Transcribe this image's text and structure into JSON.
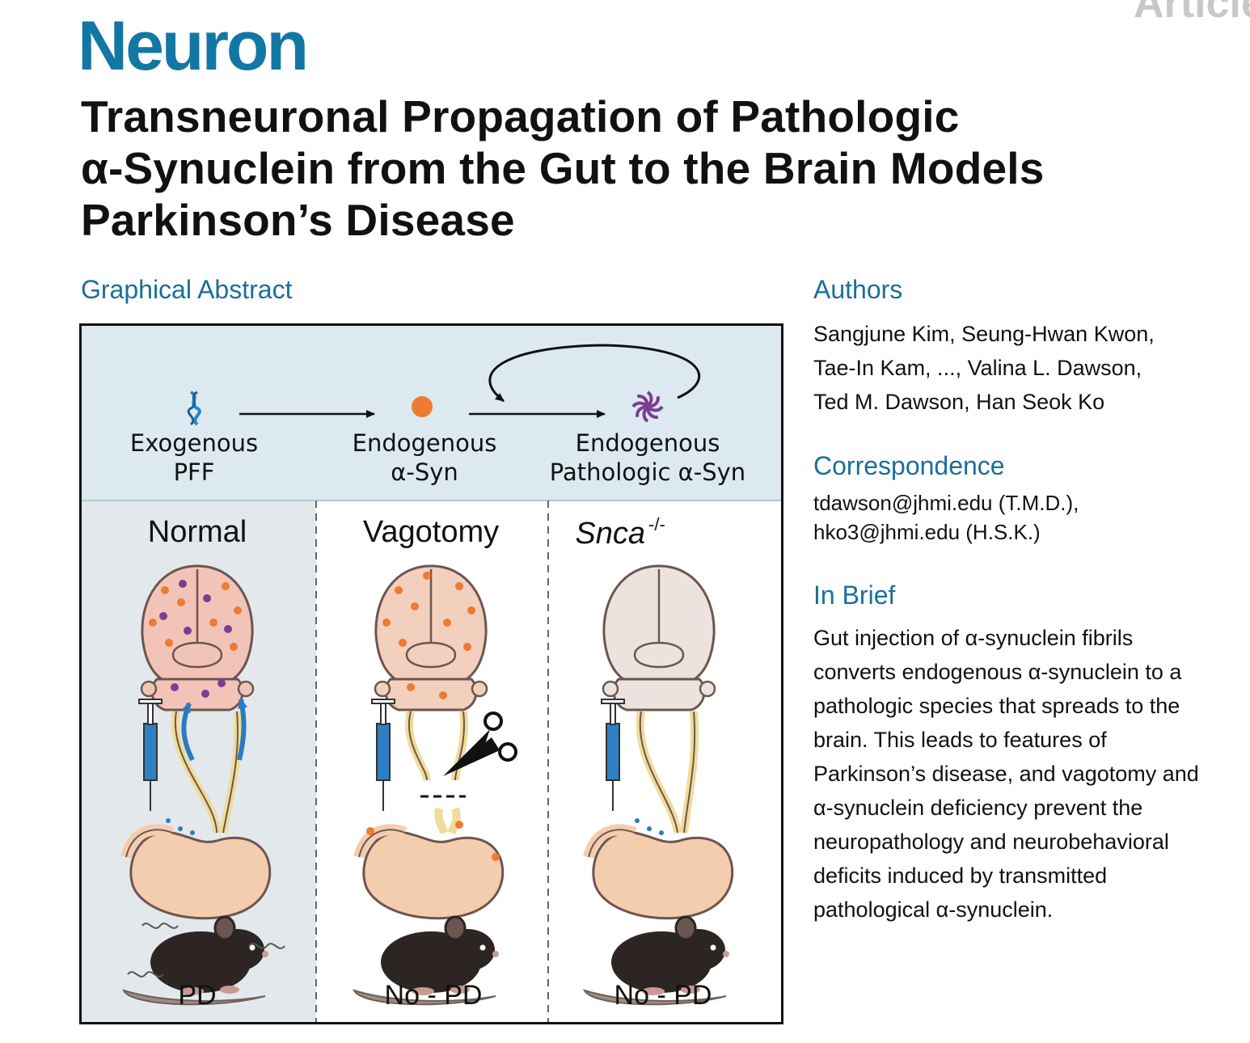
{
  "header": {
    "journal": "Neuron",
    "article_type": "Article",
    "title_lines": [
      "Transneuronal Propagation of Pathologic",
      "α-Synuclein from the Gut to the Brain Models",
      "Parkinson’s Disease"
    ]
  },
  "graphical_abstract": {
    "heading": "Graphical Abstract",
    "top": {
      "item1": [
        "Exogenous",
        "PFF"
      ],
      "item2": [
        "Endogenous",
        "α-Syn"
      ],
      "item3": [
        "Endogenous",
        "Pathologic α-Syn"
      ]
    },
    "panels": [
      {
        "title": "Normal",
        "outcome": "PD"
      },
      {
        "title": "Vagotomy",
        "outcome": "No - PD"
      },
      {
        "title": "Snca",
        "title_sup": "-/-",
        "outcome": "No - PD"
      }
    ]
  },
  "authors": {
    "heading": "Authors",
    "lines": [
      "Sangjune Kim, Seung-Hwan Kwon,",
      "Tae-In Kam, ..., Valina L. Dawson,",
      "Ted M. Dawson, Han Seok Ko"
    ]
  },
  "correspondence": {
    "heading": "Correspondence",
    "lines": [
      "tdawson@jhmi.edu (T.M.D.),",
      "hko3@jhmi.edu (H.S.K.)"
    ]
  },
  "in_brief": {
    "heading": "In Brief",
    "lines": [
      "Gut injection of α-synuclein fibrils",
      "converts endogenous α-synuclein to a",
      "pathologic species that spreads to the",
      "brain. This leads to features of",
      "Parkinson’s disease, and vagotomy and",
      "α-synuclein deficiency prevent the",
      "neuropathology and neurobehavioral",
      "deficits induced by transmitted",
      "pathological α-synuclein."
    ]
  },
  "colors": {
    "accent": "#1a6f99",
    "journal": "#1377a4",
    "top_band": "#dce9f1",
    "normal_panel": "#e3e8ec",
    "endogenous_dot": "#ee7a33",
    "pathologic": "#7a3d93",
    "pff": "#2a86c8"
  }
}
